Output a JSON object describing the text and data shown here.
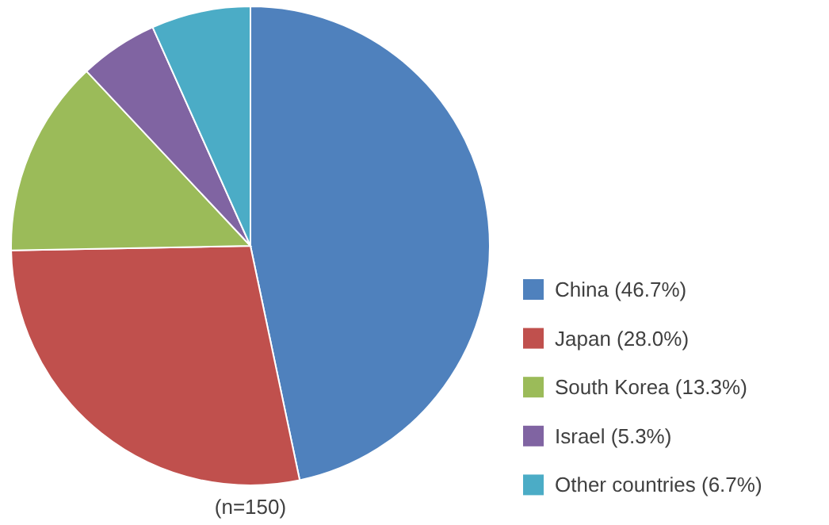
{
  "chart_data": {
    "type": "pie",
    "categories": [
      "China (46.7%)",
      "Japan (28.0%)",
      "South Korea (13.3%)",
      "Israel (5.3%)",
      "Other countries (6.7%)"
    ],
    "values": [
      46.7,
      28.0,
      13.3,
      5.3,
      6.7
    ],
    "colors": [
      "#4f81bd",
      "#c0504d",
      "#9bbb59",
      "#8064a2",
      "#4bacc6"
    ],
    "legend": "right",
    "annotations": [
      "(n=150)"
    ]
  }
}
